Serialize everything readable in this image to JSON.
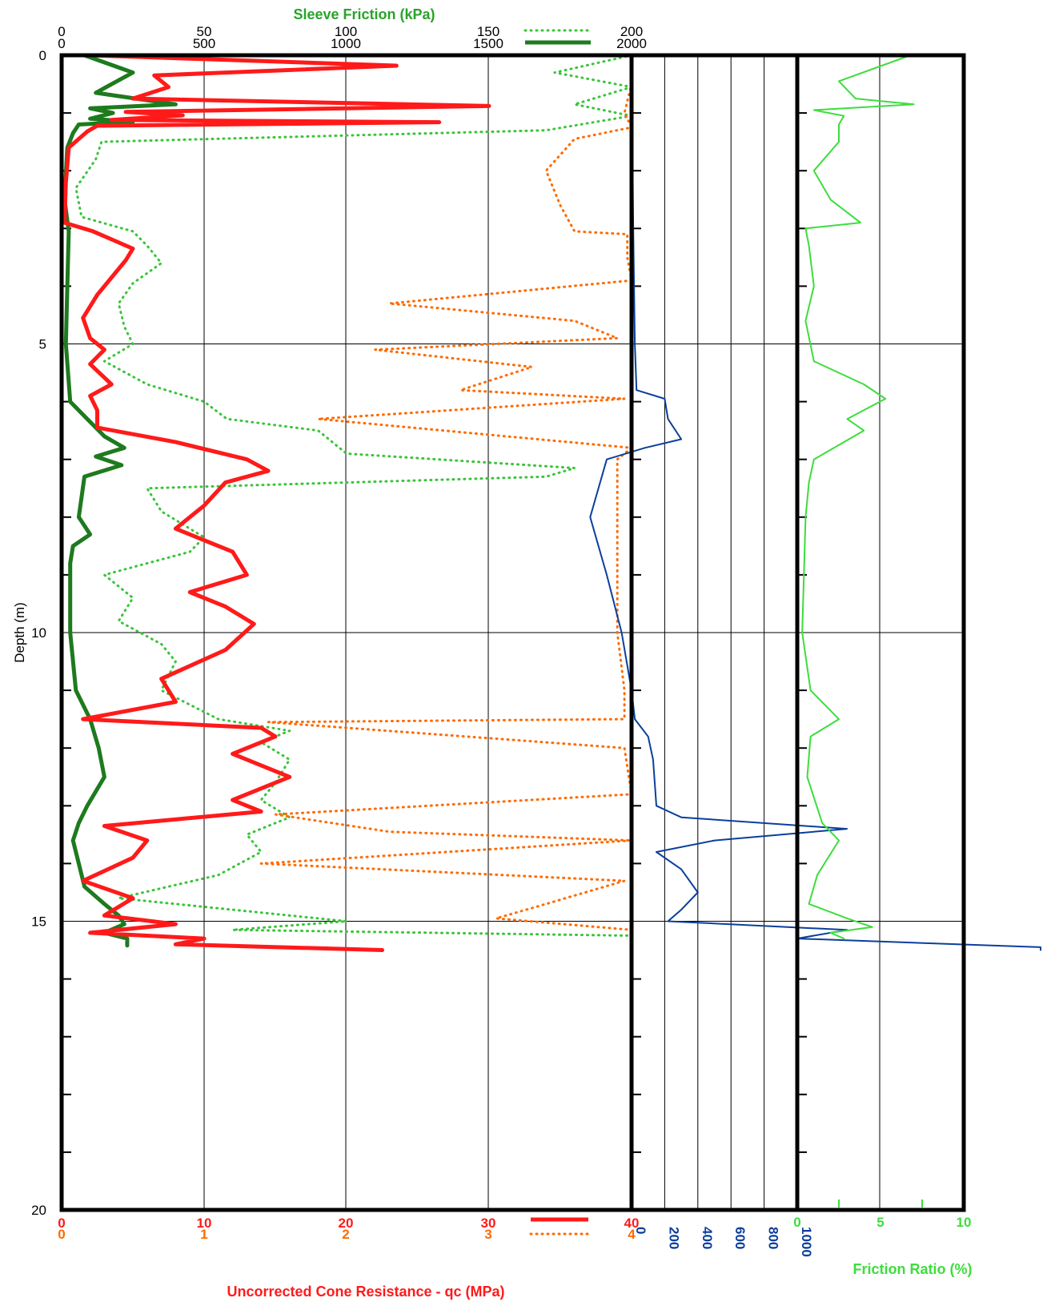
{
  "chart_data": {
    "type": "line",
    "colors": {
      "qc": "#ff1a1a",
      "qc_fine": "#ff6a00",
      "fs_fine": "#39c439",
      "fs": "#1e7a1e",
      "pore": "#0b3f9c",
      "friction_ratio": "#3ddd3d",
      "axis_title_fs": "#2aa32a",
      "frame": "#000000"
    },
    "depth_axis": {
      "label": "Depth (m)",
      "ylim": [
        0,
        20
      ],
      "tick_labels": [
        "0",
        "5",
        "10",
        "15",
        "20"
      ]
    },
    "top_axis": {
      "title": "Sleeve Friction (kPa)",
      "row1_ticks": [
        "0",
        "50",
        "100",
        "150",
        "200"
      ],
      "row2_ticks": [
        "0",
        "500",
        "1000",
        "1500",
        "2000"
      ]
    },
    "bottom_axis": {
      "title": "Uncorrected Cone Resistance - qc (MPa)",
      "row1_ticks": [
        "0",
        "10",
        "20",
        "30",
        "40"
      ],
      "row2_ticks": [
        "0",
        "1",
        "2",
        "3",
        "4"
      ]
    },
    "pore_axis": {
      "tick_labels": [
        "0",
        "200",
        "400",
        "600",
        "800",
        "1000"
      ],
      "xlim": [
        0,
        1000
      ]
    },
    "friction_ratio_axis": {
      "title": "Friction Ratio (%)",
      "tick_labels": [
        "0",
        "5",
        "10"
      ],
      "xlim": [
        0,
        10
      ]
    },
    "series": [
      {
        "key": "qc",
        "x_unit": "MPa (0-40)",
        "depth": [
          0,
          0.18,
          0.35,
          0.55,
          0.75,
          0.88,
          0.98,
          1.04,
          1.12,
          1.16,
          1.22,
          1.32,
          1.6,
          2.2,
          2.9,
          3.05,
          3.35,
          3.55,
          3.85,
          4.15,
          4.55,
          4.9,
          5.1,
          5.35,
          5.7,
          5.9,
          6.15,
          6.45,
          6.7,
          7,
          7.2,
          7.4,
          7.8,
          8.2,
          8.6,
          9,
          9.3,
          9.55,
          9.85,
          10.3,
          10.8,
          11.2,
          11.5,
          11.65,
          11.8,
          12.1,
          12.5,
          12.9,
          13.1,
          13.35,
          13.6,
          13.9,
          14.3,
          14.6,
          14.9,
          15.05,
          15.2,
          15.3,
          15.4,
          15.5
        ],
        "values": [
          2,
          23.5,
          6.5,
          7.5,
          5,
          30,
          4.5,
          8.5,
          3.5,
          26.5,
          2.5,
          1.8,
          0.5,
          0.3,
          0.2,
          2.2,
          5,
          4.5,
          3.5,
          2.5,
          1.5,
          2,
          3,
          2,
          3.5,
          2,
          2.5,
          2.5,
          8,
          13,
          14.5,
          11.5,
          10,
          8,
          12,
          13,
          9,
          11.5,
          13.5,
          11.5,
          7,
          8,
          1.5,
          14,
          15,
          12,
          16,
          12,
          14,
          3,
          6,
          5,
          1.5,
          5,
          3,
          8,
          2,
          10,
          8,
          22.5
        ]
      },
      {
        "key": "qc_fine",
        "x_unit": "MPa (0-4)",
        "depth": [
          0,
          0.5,
          1,
          1.25,
          1.45,
          2,
          2.6,
          3.05,
          3.1,
          3.5,
          3.9,
          4.3,
          4.6,
          4.9,
          5.1,
          5.4,
          5.8,
          5.95,
          6.3,
          6.55,
          6.8,
          7,
          8,
          9,
          10,
          11,
          11.5,
          11.55,
          12,
          12.8,
          13.15,
          13.45,
          13.6,
          14,
          14.3,
          14.7,
          14.95,
          15.15,
          15.5
        ],
        "values": [
          4,
          4,
          3.95,
          4,
          3.6,
          3.4,
          3.5,
          3.6,
          3.97,
          3.97,
          4,
          2.3,
          3.6,
          3.9,
          2.2,
          3.3,
          2.8,
          3.95,
          1.8,
          2.9,
          4,
          3.9,
          3.9,
          3.9,
          3.9,
          3.95,
          3.95,
          1.45,
          3.95,
          4,
          1.5,
          2.3,
          4,
          1.4,
          3.95,
          3.4,
          3.05,
          4,
          4
        ]
      },
      {
        "key": "fs_fine",
        "x_unit": "kPa (0-200)",
        "depth": [
          0,
          0.3,
          0.55,
          0.85,
          1.05,
          1.3,
          1.5,
          1.8,
          2.3,
          2.8,
          3.05,
          3.3,
          3.6,
          3.95,
          4.3,
          4.7,
          5,
          5.3,
          5.7,
          6,
          6.3,
          6.5,
          6.9,
          7.15,
          7.3,
          7.5,
          7.9,
          8.35,
          8.6,
          9,
          9.4,
          9.8,
          10.2,
          10.5,
          11,
          11.5,
          11.7,
          11.9,
          12.2,
          12.6,
          12.9,
          13.2,
          13.5,
          13.8,
          14.2,
          14.6,
          15,
          15.15,
          15.25
        ],
        "values": [
          200,
          173,
          200,
          180,
          200,
          170,
          14,
          12,
          5,
          7,
          25,
          30,
          35,
          25,
          20,
          22,
          25,
          15,
          30,
          50,
          58,
          90,
          100,
          180,
          170,
          30,
          35,
          50,
          45,
          15,
          25,
          20,
          35,
          40,
          35,
          55,
          80,
          70,
          80,
          75,
          70,
          80,
          65,
          70,
          55,
          20,
          100,
          60,
          200
        ]
      },
      {
        "key": "fs",
        "x_unit": "kPa (0-2000)",
        "depth": [
          0,
          0.3,
          0.65,
          0.85,
          0.92,
          1,
          1.1,
          1.15,
          1.2,
          1.35,
          1.6,
          2.5,
          3.05,
          4,
          5,
          6,
          6.3,
          6.6,
          6.8,
          6.95,
          7.1,
          7.3,
          8,
          8.3,
          8.5,
          8.8,
          10,
          11,
          11.5,
          12,
          12.5,
          13,
          13.3,
          13.6,
          14,
          14.4,
          14.7,
          14.9,
          15.05,
          15.2,
          15.3,
          15.42
        ],
        "values": [
          80,
          250,
          120,
          400,
          100,
          180,
          100,
          250,
          60,
          40,
          20,
          10,
          25,
          20,
          15,
          30,
          90,
          150,
          220,
          120,
          210,
          80,
          60,
          100,
          40,
          30,
          30,
          50,
          100,
          130,
          150,
          90,
          60,
          40,
          60,
          80,
          150,
          200,
          220,
          150,
          230,
          230
        ]
      },
      {
        "key": "pore",
        "x_unit": "kPa (0-1000)",
        "depth": [
          0,
          1.5,
          3,
          5,
          5.8,
          5.95,
          6.3,
          6.65,
          6.8,
          7,
          8,
          9,
          10,
          11,
          11.5,
          11.8,
          12.2,
          13,
          13.2,
          13.4,
          13.6,
          13.8,
          14.1,
          14.5,
          14.8,
          15,
          15.15,
          15.3,
          15.45,
          15.5
        ],
        "values": [
          0,
          5,
          10,
          20,
          30,
          200,
          220,
          300,
          80,
          -150,
          -250,
          -150,
          -60,
          0,
          20,
          100,
          130,
          150,
          300,
          1300,
          500,
          150,
          300,
          400,
          300,
          220,
          1300,
          1000,
          3000,
          11000
        ]
      },
      {
        "key": "friction_ratio",
        "x_unit": "% (0-10)",
        "depth": [
          0,
          0.45,
          0.75,
          0.85,
          0.95,
          1.05,
          1.2,
          1.5,
          2,
          2.5,
          2.9,
          3,
          3.3,
          4,
          4.6,
          5.3,
          5.7,
          5.95,
          6.3,
          6.5,
          7,
          7.4,
          8,
          9,
          10,
          11,
          11.5,
          11.8,
          12.5,
          13.3,
          13.6,
          14.2,
          14.7,
          14.95,
          15.1,
          15.2,
          15.3
        ],
        "values": [
          6.8,
          2.5,
          3.5,
          7,
          1,
          2.8,
          2.5,
          2.5,
          1,
          2,
          3.8,
          0.5,
          0.7,
          1,
          0.5,
          1,
          4,
          5.3,
          3,
          4,
          1,
          0.7,
          0.5,
          0.4,
          0.3,
          0.8,
          2.5,
          0.8,
          0.6,
          1.5,
          2.5,
          1.2,
          0.7,
          3,
          4.5,
          2,
          2.8
        ]
      }
    ]
  }
}
